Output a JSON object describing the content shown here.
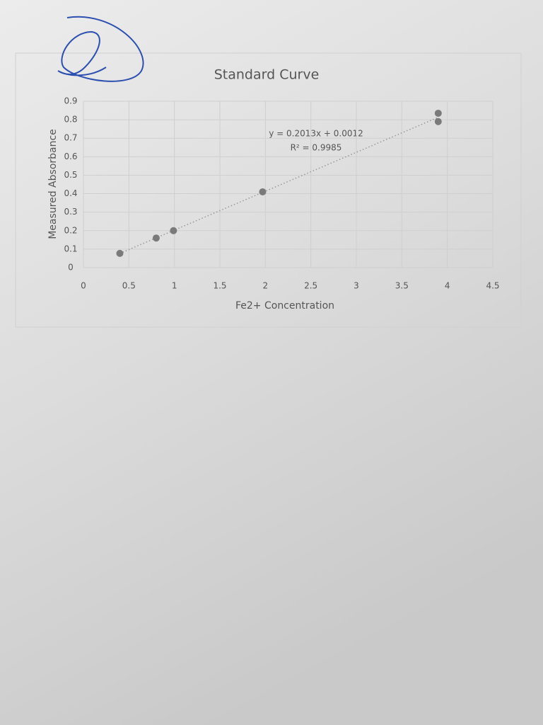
{
  "chart_data": {
    "type": "scatter",
    "title": "Standard Curve",
    "x_label": "Fe2+ Concentration",
    "y_label": "Measured Absorbance",
    "x": [
      0.4,
      0.8,
      0.99,
      1.97,
      3.9,
      3.9
    ],
    "series": [
      {
        "color": "#7a7a7a",
        "values": [
          0.077,
          0.16,
          0.2,
          0.41,
          0.835,
          0.79
        ]
      }
    ],
    "annotations": [
      "y = 0.2013x + 0.0012",
      "R² = 0.9985"
    ],
    "xlim": [
      0,
      4.5
    ],
    "xticks": [
      0,
      0.5,
      1,
      1.5,
      2,
      2.5,
      3,
      3.5,
      4,
      4.5
    ],
    "ylim": [
      0,
      0.9
    ],
    "yticks": [
      0,
      0.1,
      0.2,
      0.3,
      0.4,
      0.5,
      0.6,
      0.7,
      0.8,
      0.9
    ],
    "grid": true
  }
}
